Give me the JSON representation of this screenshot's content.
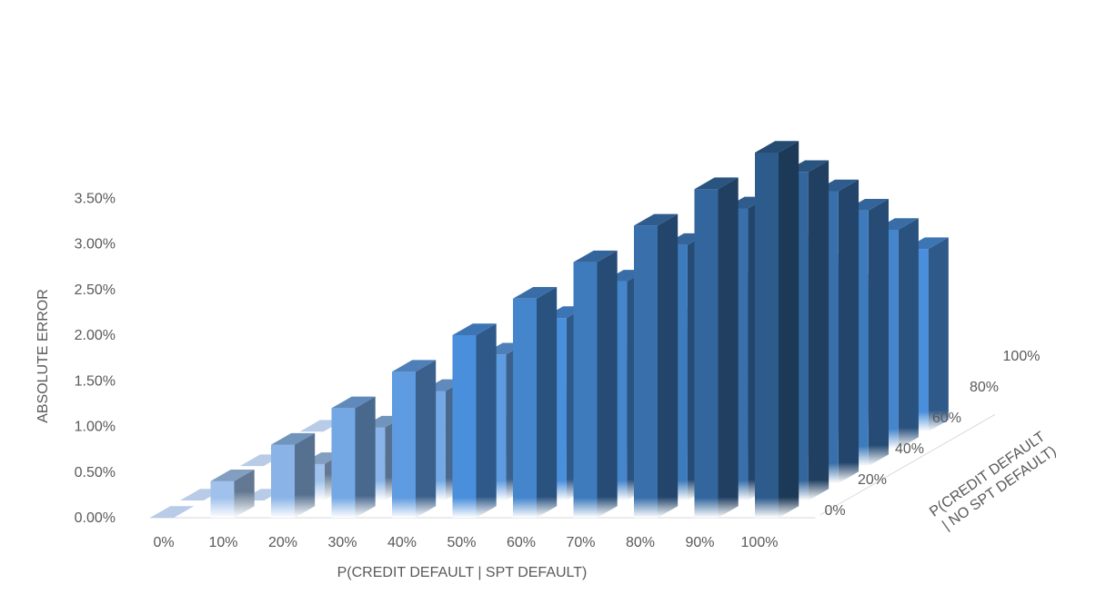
{
  "chart_data": {
    "type": "bar3d",
    "title": "",
    "xlabel": "P(CREDIT DEFAULT | SPT DEFAULT)",
    "zlabel": "P(CREDIT DEFAULT | NO SPT DEFAULT)",
    "ylabel": "ABSOLUTE ERROR",
    "x_categories": [
      "0%",
      "10%",
      "20%",
      "30%",
      "40%",
      "50%",
      "60%",
      "70%",
      "80%",
      "90%",
      "100%"
    ],
    "z_categories": [
      "0%",
      "20%",
      "40%",
      "60%",
      "80%",
      "100%"
    ],
    "y_ticks": [
      "0.00%",
      "0.50%",
      "1.00%",
      "1.50%",
      "2.00%",
      "2.50%",
      "3.00%",
      "3.50%"
    ],
    "ylim": [
      0,
      4
    ],
    "values": [
      [
        0.0,
        0.0,
        0.0,
        0.0,
        0.0,
        0.0
      ],
      [
        0.4,
        0.0,
        0.0,
        0.0,
        0.0,
        0.0
      ],
      [
        0.8,
        0.4,
        0.0,
        0.0,
        0.0,
        0.0
      ],
      [
        1.2,
        0.8,
        0.4,
        0.0,
        0.0,
        0.0
      ],
      [
        1.6,
        1.2,
        0.8,
        0.4,
        0.0,
        0.0
      ],
      [
        2.0,
        1.6,
        1.2,
        0.8,
        0.4,
        0.0
      ],
      [
        2.4,
        2.0,
        1.6,
        1.2,
        0.8,
        0.4
      ],
      [
        2.8,
        2.4,
        2.0,
        1.6,
        1.2,
        0.8
      ],
      [
        3.2,
        2.8,
        2.4,
        2.0,
        1.6,
        1.2
      ],
      [
        3.6,
        3.2,
        2.8,
        2.4,
        2.0,
        1.6
      ],
      [
        4.0,
        3.6,
        3.2,
        2.8,
        2.4,
        2.0
      ]
    ],
    "colors": {
      "light": "#b4cdef",
      "bright": "#4a8fdc",
      "dark": "#2d5c8c"
    }
  }
}
